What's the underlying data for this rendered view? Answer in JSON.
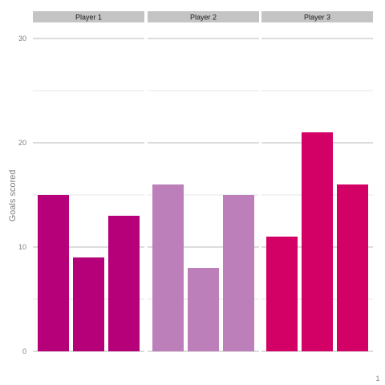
{
  "chart_data": {
    "type": "bar",
    "ylabel": "Goals scored",
    "xlabel": "",
    "x_tick_label": "1",
    "ylim": [
      0,
      30
    ],
    "y_ticks": [
      0,
      10,
      20,
      30
    ],
    "grid": true,
    "panels": [
      {
        "name": "Player 1",
        "values": [
          15,
          9,
          13
        ],
        "color": "#b5007a"
      },
      {
        "name": "Player 2",
        "values": [
          16,
          8,
          15
        ],
        "color": "#bc7fba"
      },
      {
        "name": "Player 3",
        "values": [
          11,
          21,
          16
        ],
        "color": "#d30066"
      }
    ]
  },
  "colors": {
    "strip_background": "#c4c4c4",
    "major_grid": "#c8c8c8",
    "minor_grid": "#e4e4e4"
  }
}
